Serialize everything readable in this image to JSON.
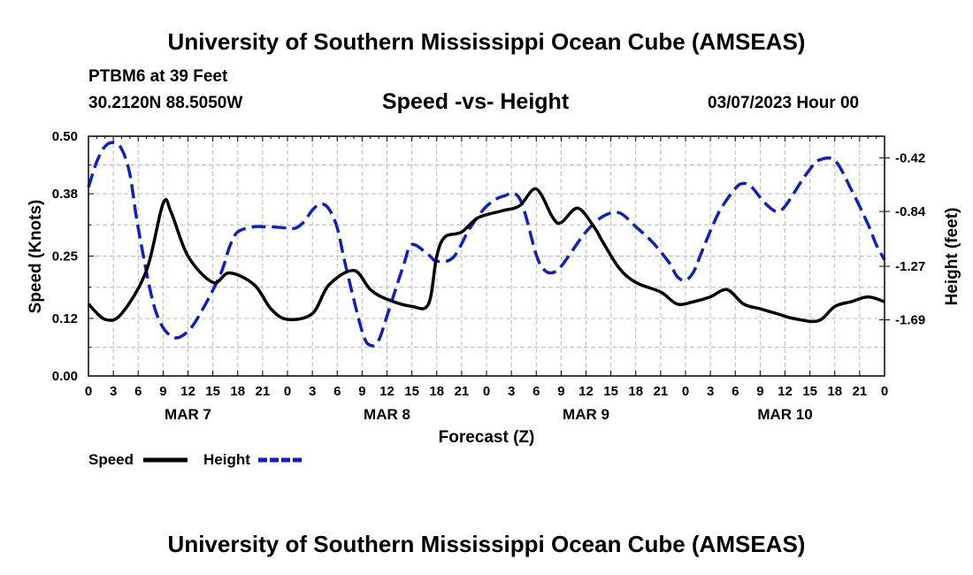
{
  "header": {
    "title": "University of Southern Mississippi Ocean Cube (AMSEAS)",
    "station": "PTBM6 at 39 Feet",
    "location": "30.2120N  88.5050W",
    "datetime": "03/07/2023 Hour 00",
    "footer_title": "University of Southern Mississippi Ocean Cube (AMSEAS)"
  },
  "chart_data": {
    "type": "line",
    "title": "Speed -vs- Height",
    "xlabel": "Forecast (Z)",
    "ylabel": "Speed (Knots)",
    "y2label": "Height (feet)",
    "x_ticks": [
      "0",
      "3",
      "6",
      "9",
      "12",
      "15",
      "18",
      "21",
      "0",
      "3",
      "6",
      "9",
      "12",
      "15",
      "18",
      "21",
      "0",
      "3",
      "6",
      "9",
      "12",
      "15",
      "18",
      "21",
      "0",
      "3",
      "6",
      "9",
      "12",
      "15",
      "18",
      "21",
      "0"
    ],
    "day_labels": [
      {
        "label": "MAR 7",
        "hour": 12
      },
      {
        "label": "MAR 8",
        "hour": 36
      },
      {
        "label": "MAR 9",
        "hour": 60
      },
      {
        "label": "MAR 10",
        "hour": 84
      }
    ],
    "ylim": [
      0,
      0.5
    ],
    "y_ticks": [
      "0.00",
      "0.12",
      "0.25",
      "0.38",
      "0.50"
    ],
    "y2lim": [
      -2.13,
      -0.25
    ],
    "y2_ticks": [
      "-0.42",
      "-0.84",
      "-1.27",
      "-1.69"
    ],
    "grid": true,
    "legend_position": "bottom-left",
    "series": [
      {
        "name": "Speed",
        "axis": "left",
        "color": "#000000",
        "style": "solid",
        "hours": [
          0,
          2,
          4,
          7,
          9,
          10,
          12,
          15,
          17,
          20,
          22,
          24,
          27,
          29,
          32,
          34,
          36,
          39,
          41,
          42,
          43,
          45,
          47,
          50,
          52,
          54,
          56,
          57,
          59,
          61,
          62,
          64,
          66,
          69,
          71,
          73,
          75,
          77,
          79,
          81,
          83,
          85,
          88,
          90,
          92,
          94,
          96
        ],
        "values": [
          0.15,
          0.118,
          0.13,
          0.22,
          0.36,
          0.34,
          0.25,
          0.195,
          0.215,
          0.19,
          0.14,
          0.118,
          0.13,
          0.19,
          0.22,
          0.18,
          0.16,
          0.145,
          0.15,
          0.25,
          0.29,
          0.3,
          0.33,
          0.345,
          0.355,
          0.39,
          0.33,
          0.32,
          0.35,
          0.31,
          0.28,
          0.225,
          0.195,
          0.175,
          0.15,
          0.155,
          0.165,
          0.18,
          0.15,
          0.14,
          0.13,
          0.12,
          0.115,
          0.145,
          0.155,
          0.165,
          0.155
        ]
      },
      {
        "name": "Height",
        "axis": "right",
        "color": "#1020c0",
        "style": "dashed",
        "hours": [
          0,
          1,
          2,
          3,
          4,
          5,
          6,
          8,
          10,
          12,
          14,
          16,
          17,
          18,
          20,
          21,
          22,
          24,
          25,
          26,
          27,
          28,
          29,
          30,
          31,
          33,
          34,
          35,
          36,
          38,
          39,
          41,
          42,
          44,
          46,
          48,
          50,
          52,
          54,
          55,
          56,
          57,
          58,
          60,
          62,
          64,
          66,
          68,
          70,
          71,
          72,
          73,
          74,
          76,
          78,
          79,
          80,
          81,
          82,
          83,
          84,
          86,
          87,
          88,
          90,
          92,
          94,
          95,
          96
        ],
        "values": [
          -0.65,
          -0.45,
          -0.33,
          -0.3,
          -0.35,
          -0.55,
          -0.97,
          -1.6,
          -1.82,
          -1.78,
          -1.58,
          -1.32,
          -1.12,
          -1.0,
          -0.96,
          -0.96,
          -0.96,
          -0.97,
          -0.97,
          -0.92,
          -0.83,
          -0.78,
          -0.82,
          -0.97,
          -1.26,
          -1.78,
          -1.89,
          -1.85,
          -1.66,
          -1.26,
          -1.1,
          -1.18,
          -1.23,
          -1.2,
          -0.97,
          -0.8,
          -0.72,
          -0.74,
          -1.18,
          -1.3,
          -1.32,
          -1.27,
          -1.18,
          -1.0,
          -0.88,
          -0.85,
          -0.96,
          -1.08,
          -1.24,
          -1.35,
          -1.38,
          -1.31,
          -1.15,
          -0.85,
          -0.66,
          -0.62,
          -0.65,
          -0.73,
          -0.8,
          -0.84,
          -0.8,
          -0.6,
          -0.51,
          -0.44,
          -0.44,
          -0.67,
          -0.94,
          -1.1,
          -1.22
        ]
      }
    ]
  }
}
